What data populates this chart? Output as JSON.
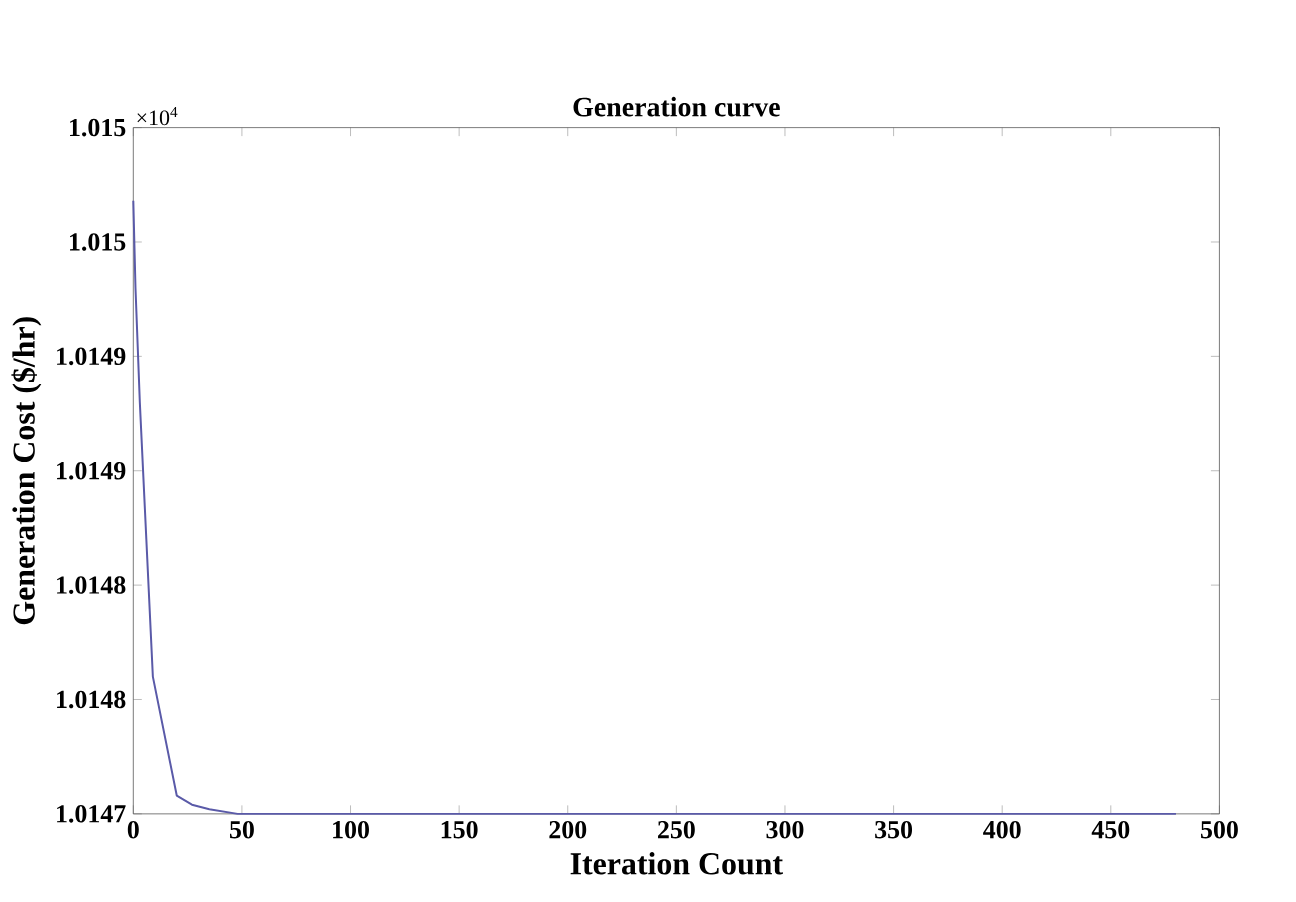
{
  "chart_data": {
    "type": "line",
    "title": "Generation curve",
    "xlabel": "Iteration Count",
    "ylabel": "Generation Cost ($/hr)",
    "annotations": [
      "×10$^{4}$"
    ],
    "x": [
      0,
      1,
      3,
      6,
      9,
      20,
      27,
      35,
      48,
      480
    ],
    "series": [
      {
        "color": "#5a5aa8",
        "values": [
          1.014968,
          1.01493,
          1.01488,
          1.01482,
          1.01476,
          1.014708,
          1.014704,
          1.014702,
          1.0147,
          1.0147
        ]
      }
    ],
    "xlim": [
      0,
      500
    ],
    "xticks": [
      0,
      50,
      100,
      150,
      200,
      250,
      300,
      350,
      400,
      450,
      500
    ],
    "ylim": [
      1.0147,
      1.015
    ],
    "yticks": [
      {
        "value": 1.0147,
        "label": "1.0147"
      },
      {
        "value": 1.01475,
        "label": "1.0148"
      },
      {
        "value": 1.0148,
        "label": "1.0148"
      },
      {
        "value": 1.01485,
        "label": "1.0149"
      },
      {
        "value": 1.0149,
        "label": "1.0149"
      },
      {
        "value": 1.01495,
        "label": "1.015"
      },
      {
        "value": 1.015,
        "label": "1.015"
      }
    ],
    "grid": false,
    "legend": false,
    "marker": "none",
    "line_style": "solid"
  }
}
